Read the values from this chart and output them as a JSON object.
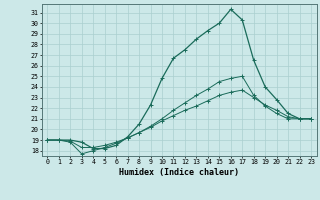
{
  "xlabel": "Humidex (Indice chaleur)",
  "ylabel": "",
  "xlim": [
    -0.5,
    23.5
  ],
  "ylim": [
    17.5,
    31.8
  ],
  "yticks": [
    18,
    19,
    20,
    21,
    22,
    23,
    24,
    25,
    26,
    27,
    28,
    29,
    30,
    31
  ],
  "xticks": [
    0,
    1,
    2,
    3,
    4,
    5,
    6,
    7,
    8,
    9,
    10,
    11,
    12,
    13,
    14,
    15,
    16,
    17,
    18,
    19,
    20,
    21,
    22,
    23
  ],
  "bg_color": "#cce8e8",
  "grid_color": "#aacfcf",
  "line_color": "#1a6b5a",
  "line1": [
    19.0,
    19.0,
    19.0,
    18.8,
    18.2,
    18.2,
    18.5,
    19.3,
    20.5,
    22.3,
    24.8,
    26.7,
    27.5,
    28.5,
    29.3,
    30.0,
    31.3,
    30.3,
    26.5,
    24.0,
    22.8,
    21.5,
    21.0,
    21.0
  ],
  "line2": [
    19.0,
    19.0,
    18.8,
    17.7,
    18.0,
    18.3,
    18.7,
    19.2,
    19.7,
    20.3,
    21.0,
    21.8,
    22.5,
    23.2,
    23.8,
    24.5,
    24.8,
    25.0,
    23.2,
    22.2,
    21.5,
    21.0,
    21.0,
    21.0
  ],
  "line3": [
    19.0,
    19.0,
    18.9,
    18.3,
    18.3,
    18.5,
    18.8,
    19.2,
    19.7,
    20.2,
    20.8,
    21.3,
    21.8,
    22.2,
    22.7,
    23.2,
    23.5,
    23.7,
    23.0,
    22.3,
    21.8,
    21.2,
    21.0,
    21.0
  ]
}
